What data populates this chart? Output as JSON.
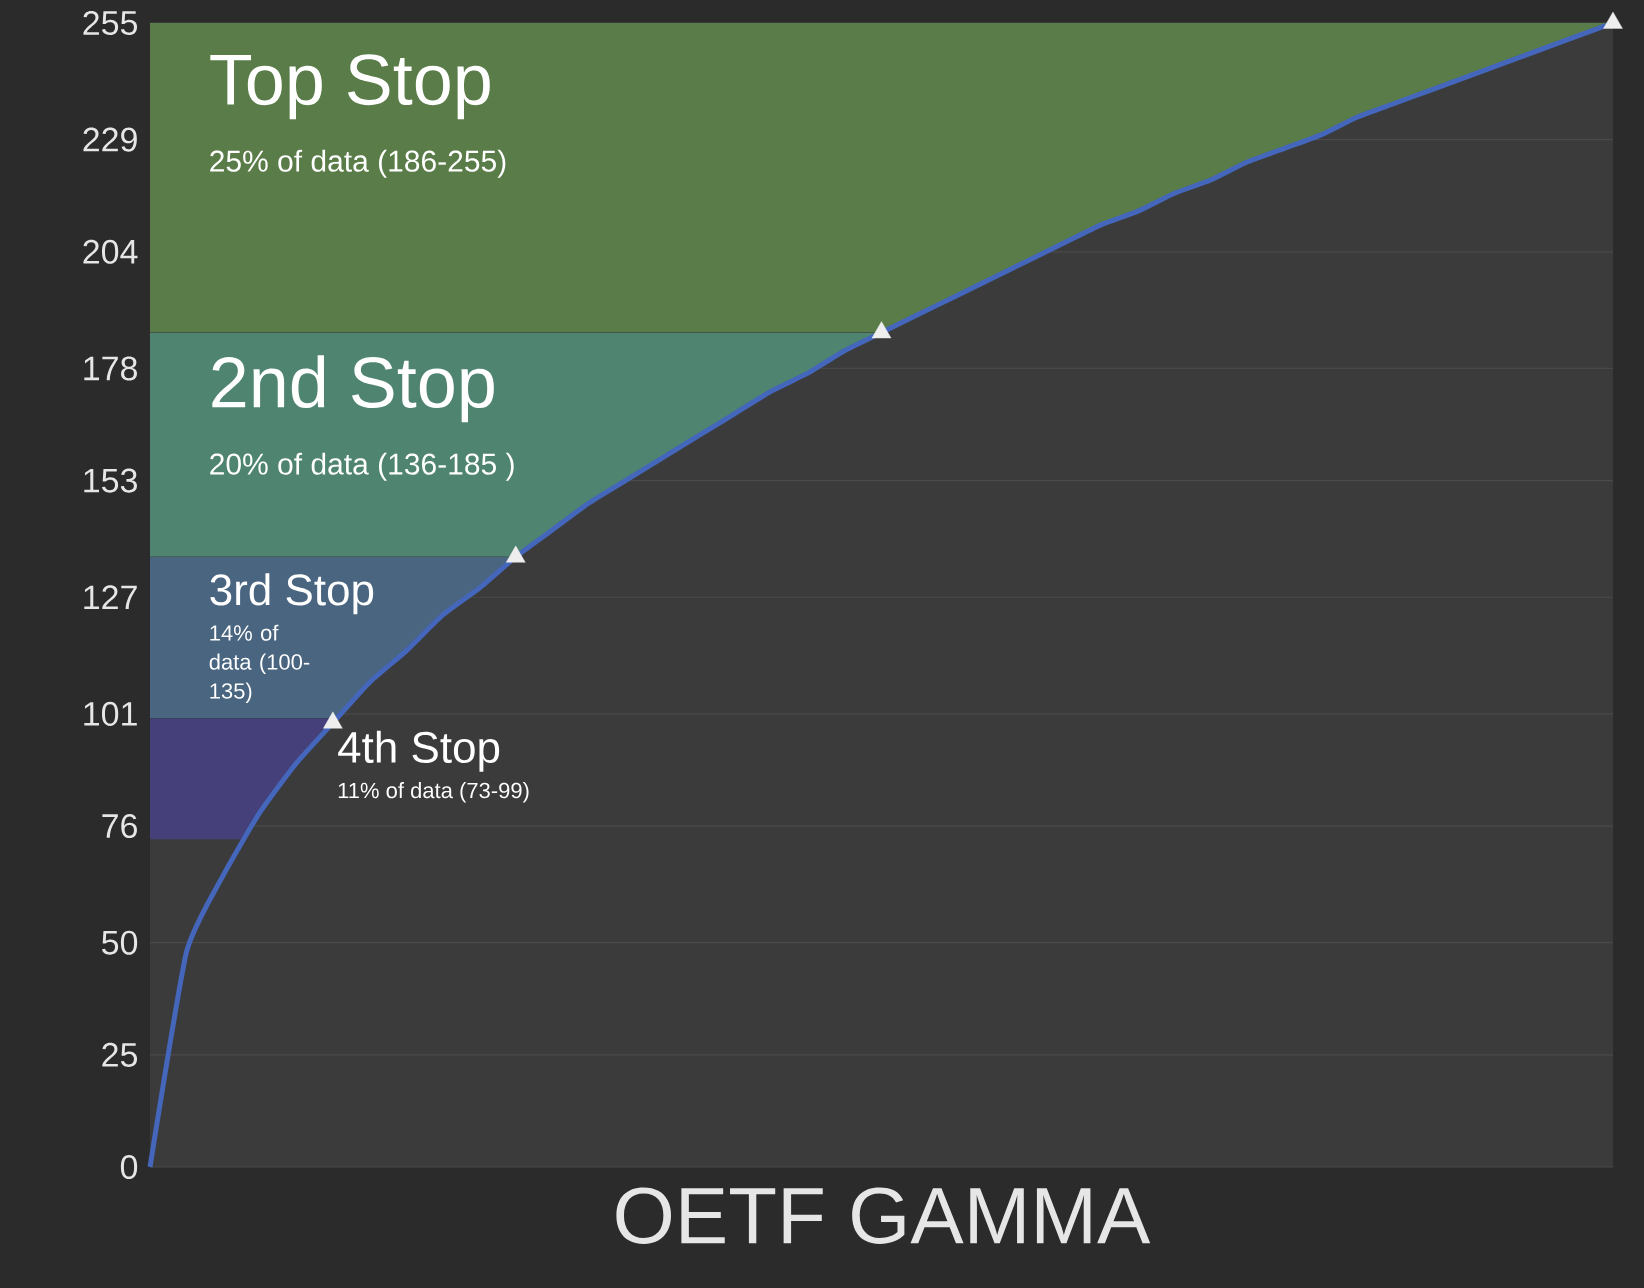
{
  "chart_data": {
    "type": "line",
    "xlabel": "OETF GAMMA",
    "categories": [
      null,
      null,
      null,
      null,
      null,
      null,
      null,
      null,
      null,
      null,
      null,
      null,
      null,
      null,
      null,
      null,
      null,
      null,
      null,
      null,
      null,
      null,
      null,
      null,
      null,
      null,
      null,
      null,
      null,
      null,
      null,
      null,
      null,
      null,
      null,
      null,
      null,
      null,
      null,
      null,
      null
    ],
    "series": [
      {
        "color": "#4466bb",
        "line_style": "solid",
        "values": [
          0,
          48,
          65,
          79,
          90,
          99,
          108,
          115,
          123,
          129,
          136,
          142,
          148,
          153,
          158,
          163,
          168,
          173,
          177,
          182,
          186,
          190,
          194,
          198,
          202,
          206,
          210,
          213,
          217,
          220,
          224,
          227,
          230,
          234,
          237,
          240,
          243,
          246,
          249,
          252,
          255
        ]
      },
      {
        "type": "scatter",
        "color": "#eeeeee",
        "marker": "triangle",
        "values": [
          null,
          null,
          null,
          null,
          null,
          99,
          null,
          null,
          null,
          null,
          136,
          null,
          null,
          null,
          null,
          null,
          null,
          null,
          null,
          null,
          186,
          null,
          null,
          null,
          null,
          null,
          null,
          null,
          null,
          null,
          null,
          null,
          null,
          null,
          null,
          null,
          null,
          null,
          null,
          null,
          255
        ]
      }
    ],
    "ylim": [
      0,
      255
    ],
    "yticks": [
      0,
      25,
      50,
      76,
      101,
      127,
      153,
      178,
      204,
      229,
      255
    ],
    "tick_labels": "y",
    "grid": "y",
    "bands": [
      {
        "axis": "y",
        "from": 186,
        "to": 255,
        "label": "Top Stop",
        "color": "#5a7c48"
      },
      {
        "axis": "y",
        "from": 136,
        "to": 186,
        "label": "2nd Stop",
        "color": "#4f8570"
      },
      {
        "axis": "y",
        "from": 100,
        "to": 136,
        "label": "3rd Stop",
        "color": "#4a6580"
      },
      {
        "axis": "y",
        "from": 73,
        "to": 100,
        "label": "4th Stop",
        "color": "#45407a"
      }
    ],
    "annotations": [
      "25% of data (186-255)",
      "20% of data (136-185 )",
      "14% of data (100-135)",
      "11% of data (73-99)"
    ]
  }
}
